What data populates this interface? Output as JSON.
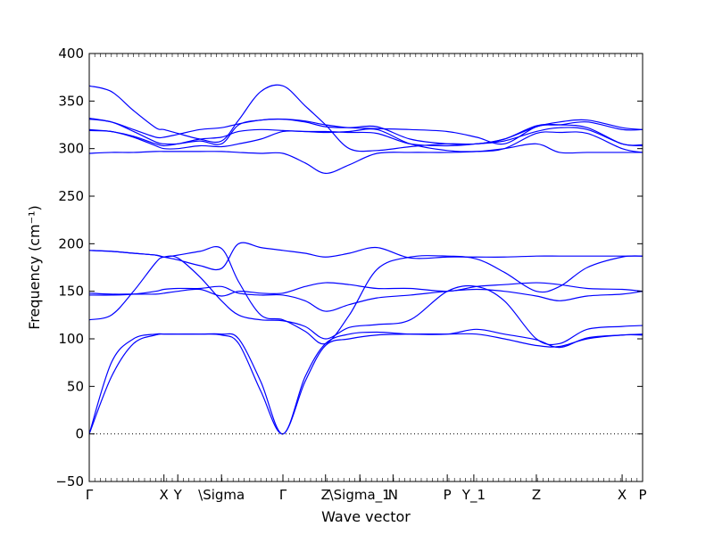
{
  "chart_data": {
    "type": "line",
    "xlabel": "Wave vector",
    "ylabel": "Frequency (cm⁻¹)",
    "ylim": [
      -50,
      400
    ],
    "yticks": [
      -50,
      0,
      50,
      100,
      150,
      200,
      250,
      300,
      350,
      400
    ],
    "xlim": [
      0,
      1
    ],
    "line_color": "#0000ff",
    "zero_line": {
      "y": 0,
      "style": "dotted"
    },
    "kpoints": [
      {
        "label": "Γ",
        "x": 0.0
      },
      {
        "label": "X",
        "x": 0.135
      },
      {
        "label": "Y",
        "x": 0.16
      },
      {
        "label": "\\Sigma",
        "x": 0.239
      },
      {
        "label": "Γ",
        "x": 0.35
      },
      {
        "label": "Z",
        "x": 0.427
      },
      {
        "label": "\\Sigma_1",
        "x": 0.489
      },
      {
        "label": "N",
        "x": 0.549
      },
      {
        "label": "P",
        "x": 0.647
      },
      {
        "label": "Y_1",
        "x": 0.695
      },
      {
        "label": "Z",
        "x": 0.808
      },
      {
        "label": "X",
        "x": 0.963
      },
      {
        "label": "P",
        "x": 1.0
      }
    ],
    "series": [
      {
        "x": [
          0,
          0.04,
          0.08,
          0.12,
          0.135,
          0.16,
          0.2,
          0.239,
          0.27,
          0.31,
          0.35,
          0.39,
          0.427,
          0.47,
          0.52,
          0.58,
          0.647,
          0.7,
          0.75,
          0.808,
          0.85,
          0.9,
          0.963,
          1.0
        ],
        "y": [
          0,
          75,
          100,
          105,
          105,
          105,
          105,
          104,
          95,
          45,
          0,
          55,
          93,
          100,
          104,
          105,
          105,
          105,
          100,
          93,
          92,
          100,
          104,
          104
        ]
      },
      {
        "x": [
          0,
          0.04,
          0.08,
          0.12,
          0.135,
          0.16,
          0.2,
          0.239,
          0.27,
          0.31,
          0.35,
          0.39,
          0.427,
          0.47,
          0.52,
          0.58,
          0.647,
          0.7,
          0.75,
          0.808,
          0.85,
          0.9,
          0.963,
          1.0
        ],
        "y": [
          0,
          60,
          95,
          104,
          105,
          105,
          105,
          105,
          100,
          55,
          0,
          60,
          95,
          105,
          107,
          105,
          105,
          110,
          105,
          99,
          91,
          101,
          104,
          105
        ]
      },
      {
        "x": [
          0,
          0.04,
          0.08,
          0.12,
          0.135,
          0.16,
          0.2,
          0.239,
          0.27,
          0.31,
          0.35,
          0.39,
          0.427,
          0.47,
          0.52,
          0.58,
          0.647,
          0.7,
          0.75,
          0.808,
          0.85,
          0.9,
          0.963,
          1.0
        ],
        "y": [
          120,
          125,
          150,
          180,
          186,
          185,
          165,
          140,
          125,
          120,
          119,
          113,
          100,
          112,
          115,
          120,
          150,
          155,
          140,
          100,
          95,
          110,
          113,
          114
        ]
      },
      {
        "x": [
          0,
          0.04,
          0.08,
          0.12,
          0.135,
          0.16,
          0.2,
          0.239,
          0.27,
          0.31,
          0.35,
          0.39,
          0.427,
          0.47,
          0.52,
          0.58,
          0.647,
          0.7,
          0.75,
          0.808,
          0.85,
          0.9,
          0.963,
          1.0
        ],
        "y": [
          146,
          146,
          147,
          150,
          152,
          153,
          153,
          155,
          148,
          146,
          146,
          140,
          129,
          136,
          143,
          146,
          150,
          152,
          150,
          145,
          140,
          145,
          147,
          150
        ]
      },
      {
        "x": [
          0,
          0.04,
          0.08,
          0.12,
          0.135,
          0.16,
          0.2,
          0.239,
          0.27,
          0.31,
          0.35,
          0.39,
          0.427,
          0.47,
          0.52,
          0.58,
          0.647,
          0.7,
          0.75,
          0.808,
          0.85,
          0.9,
          0.963,
          1.0
        ],
        "y": [
          148,
          147,
          147,
          147,
          148,
          150,
          152,
          145,
          150,
          148,
          148,
          155,
          159,
          157,
          153,
          153,
          150,
          155,
          157,
          159,
          157,
          153,
          152,
          150
        ]
      },
      {
        "x": [
          0,
          0.04,
          0.08,
          0.12,
          0.135,
          0.16,
          0.2,
          0.239,
          0.27,
          0.31,
          0.35,
          0.39,
          0.427,
          0.47,
          0.52,
          0.58,
          0.647,
          0.7,
          0.75,
          0.808,
          0.85,
          0.9,
          0.963,
          1.0
        ],
        "y": [
          193,
          192,
          190,
          188,
          186,
          183,
          177,
          174,
          200,
          196,
          193,
          190,
          186,
          190,
          196,
          185,
          186,
          186,
          186,
          187,
          187,
          187,
          187,
          187
        ]
      },
      {
        "x": [
          0,
          0.04,
          0.08,
          0.12,
          0.135,
          0.16,
          0.2,
          0.239,
          0.27,
          0.31,
          0.35,
          0.39,
          0.427,
          0.47,
          0.52,
          0.58,
          0.647,
          0.7,
          0.75,
          0.808,
          0.85,
          0.9,
          0.963,
          1.0
        ],
        "y": [
          193,
          192,
          190,
          188,
          186,
          188,
          192,
          195,
          160,
          125,
          120,
          108,
          95,
          125,
          173,
          186,
          187,
          184,
          170,
          150,
          155,
          175,
          186,
          187
        ]
      },
      {
        "x": [
          0,
          0.04,
          0.08,
          0.12,
          0.135,
          0.16,
          0.2,
          0.239,
          0.27,
          0.31,
          0.35,
          0.39,
          0.427,
          0.47,
          0.52,
          0.58,
          0.647,
          0.7,
          0.75,
          0.808,
          0.85,
          0.9,
          0.963,
          1.0
        ],
        "y": [
          295,
          296,
          296,
          297,
          297,
          297,
          297,
          297,
          296,
          295,
          295,
          285,
          274,
          283,
          295,
          296,
          296,
          297,
          300,
          305,
          296,
          296,
          296,
          296
        ]
      },
      {
        "x": [
          0,
          0.04,
          0.08,
          0.12,
          0.135,
          0.16,
          0.2,
          0.239,
          0.27,
          0.31,
          0.35,
          0.39,
          0.427,
          0.47,
          0.52,
          0.58,
          0.647,
          0.7,
          0.75,
          0.808,
          0.85,
          0.9,
          0.963,
          1.0
        ],
        "y": [
          319,
          318,
          312,
          303,
          300,
          300,
          303,
          302,
          305,
          310,
          318,
          318,
          317,
          318,
          320,
          305,
          298,
          297,
          300,
          316,
          317,
          316,
          300,
          296
        ]
      },
      {
        "x": [
          0,
          0.04,
          0.08,
          0.12,
          0.135,
          0.16,
          0.2,
          0.239,
          0.27,
          0.31,
          0.35,
          0.39,
          0.427,
          0.47,
          0.52,
          0.58,
          0.647,
          0.7,
          0.75,
          0.808,
          0.85,
          0.9,
          0.963,
          1.0
        ],
        "y": [
          320,
          318,
          313,
          305,
          303,
          305,
          310,
          312,
          318,
          320,
          319,
          318,
          318,
          317,
          316,
          305,
          303,
          305,
          308,
          318,
          322,
          320,
          305,
          303
        ]
      },
      {
        "x": [
          0,
          0.04,
          0.08,
          0.12,
          0.135,
          0.16,
          0.2,
          0.239,
          0.27,
          0.31,
          0.35,
          0.39,
          0.427,
          0.47,
          0.52,
          0.58,
          0.647,
          0.7,
          0.75,
          0.808,
          0.85,
          0.9,
          0.963,
          1.0
        ],
        "y": [
          331,
          328,
          318,
          307,
          305,
          305,
          308,
          305,
          325,
          330,
          331,
          328,
          323,
          322,
          323,
          310,
          305,
          305,
          310,
          324,
          325,
          322,
          305,
          304
        ]
      },
      {
        "x": [
          0,
          0.04,
          0.08,
          0.12,
          0.135,
          0.16,
          0.2,
          0.239,
          0.27,
          0.31,
          0.35,
          0.39,
          0.427,
          0.47,
          0.52,
          0.58,
          0.647,
          0.7,
          0.75,
          0.808,
          0.85,
          0.9,
          0.963,
          1.0
        ],
        "y": [
          332,
          328,
          320,
          312,
          312,
          315,
          320,
          322,
          326,
          330,
          331,
          329,
          325,
          322,
          321,
          320,
          318,
          312,
          305,
          323,
          325,
          328,
          320,
          320
        ]
      },
      {
        "x": [
          0,
          0.04,
          0.08,
          0.12,
          0.135,
          0.16,
          0.2,
          0.239,
          0.27,
          0.31,
          0.35,
          0.39,
          0.427,
          0.47,
          0.52,
          0.58,
          0.647,
          0.7,
          0.75,
          0.808,
          0.85,
          0.9,
          0.963,
          1.0
        ],
        "y": [
          366,
          360,
          340,
          322,
          320,
          316,
          310,
          308,
          330,
          360,
          366,
          345,
          325,
          300,
          298,
          302,
          305,
          305,
          310,
          323,
          328,
          330,
          322,
          320
        ]
      }
    ]
  }
}
